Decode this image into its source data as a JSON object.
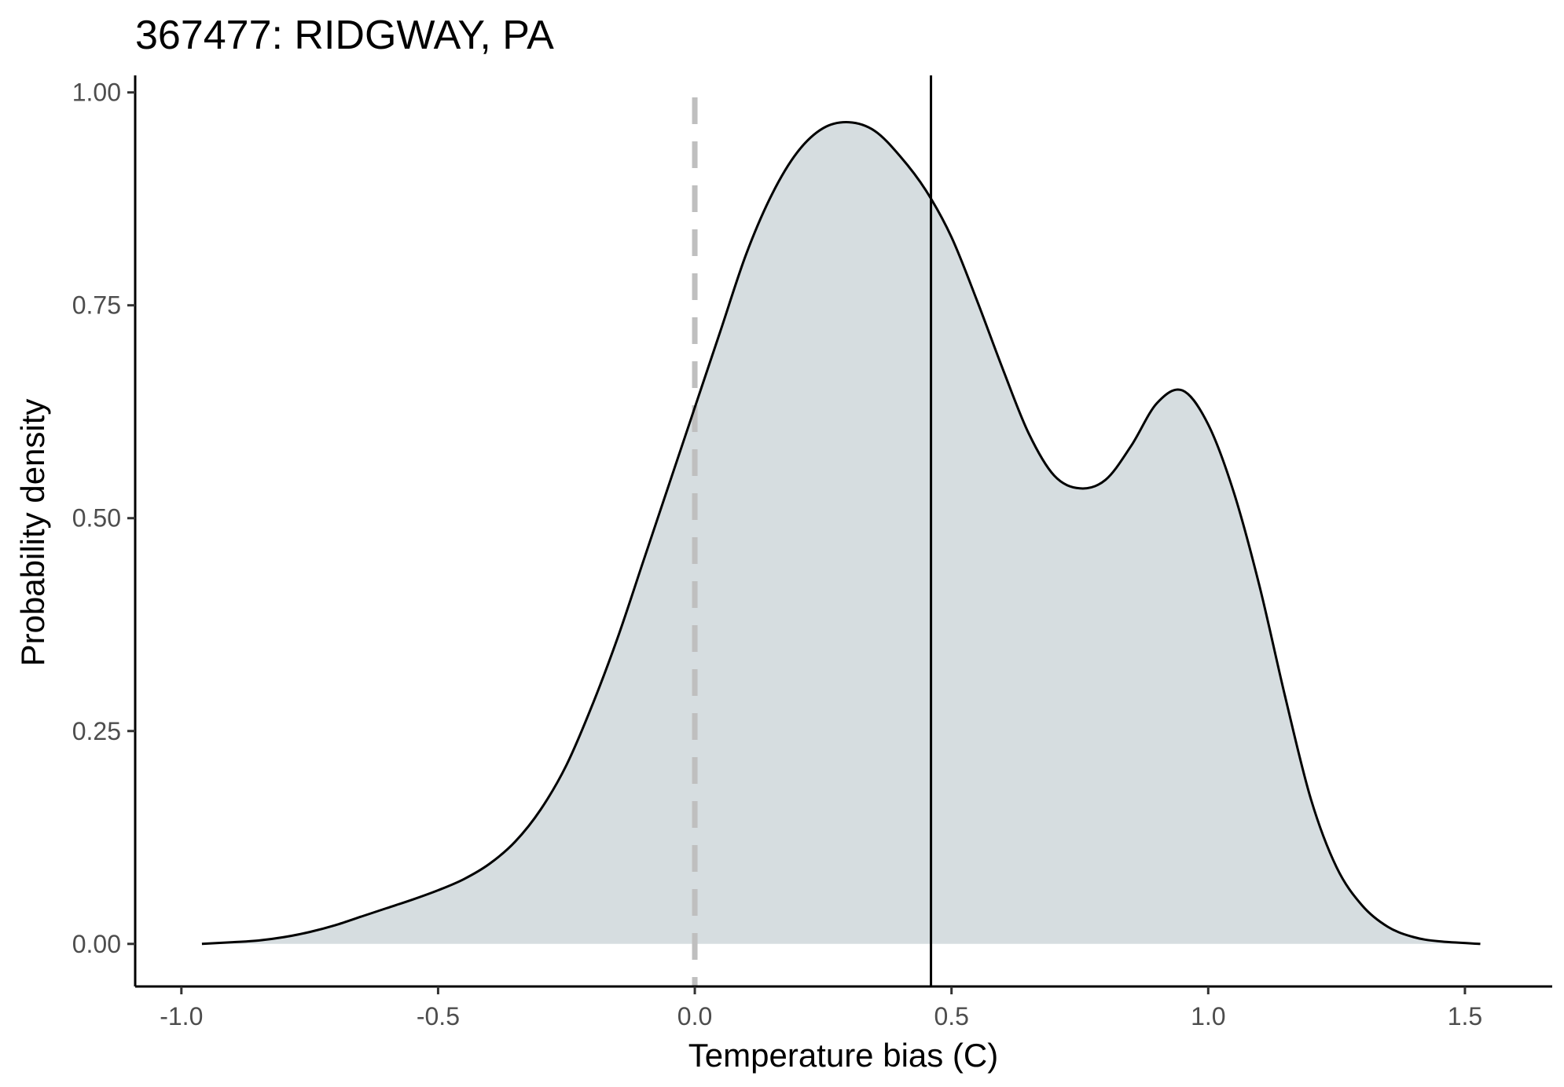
{
  "chart_data": {
    "type": "area",
    "title": "367477: RIDGWAY, PA",
    "xlabel": "Temperature bias (C)",
    "ylabel": "Probability density",
    "xlim": [
      -1.09,
      1.67
    ],
    "ylim": [
      -0.05,
      1.02
    ],
    "x_ticks": [
      -1.0,
      -0.5,
      0.0,
      0.5,
      1.0,
      1.5
    ],
    "x_tick_labels": [
      "-1.0",
      "-0.5",
      "0.0",
      "0.5",
      "1.0",
      "1.5"
    ],
    "y_ticks": [
      0.0,
      0.25,
      0.5,
      0.75,
      1.0
    ],
    "y_tick_labels": [
      "0.00",
      "0.25",
      "0.50",
      "0.75",
      "1.00"
    ],
    "grid": false,
    "fill_color": "#d6dde0",
    "line_color": "#000000",
    "reference_lines": [
      {
        "x": 0.0,
        "style": "dashed",
        "color": "#bfbfbf"
      },
      {
        "x": 0.46,
        "style": "solid",
        "color": "#000000"
      }
    ],
    "series": [
      {
        "x": [
          -0.96,
          -0.9,
          -0.85,
          -0.8,
          -0.75,
          -0.7,
          -0.65,
          -0.6,
          -0.55,
          -0.5,
          -0.45,
          -0.4,
          -0.35,
          -0.3,
          -0.25,
          -0.2,
          -0.15,
          -0.1,
          -0.05,
          0.0,
          0.05,
          0.1,
          0.15,
          0.2,
          0.25,
          0.3,
          0.35,
          0.4,
          0.45,
          0.5,
          0.55,
          0.6,
          0.65,
          0.7,
          0.75,
          0.8,
          0.85,
          0.9,
          0.95,
          1.0,
          1.05,
          1.1,
          1.15,
          1.2,
          1.25,
          1.3,
          1.35,
          1.4,
          1.45,
          1.53
        ],
        "y": [
          0.0,
          0.002,
          0.004,
          0.008,
          0.014,
          0.022,
          0.032,
          0.042,
          0.052,
          0.063,
          0.076,
          0.094,
          0.12,
          0.158,
          0.21,
          0.28,
          0.36,
          0.45,
          0.54,
          0.63,
          0.72,
          0.81,
          0.88,
          0.93,
          0.958,
          0.965,
          0.955,
          0.925,
          0.885,
          0.83,
          0.755,
          0.675,
          0.6,
          0.55,
          0.535,
          0.545,
          0.585,
          0.635,
          0.65,
          0.61,
          0.53,
          0.42,
          0.29,
          0.17,
          0.09,
          0.045,
          0.02,
          0.008,
          0.003,
          0.0
        ]
      }
    ]
  }
}
